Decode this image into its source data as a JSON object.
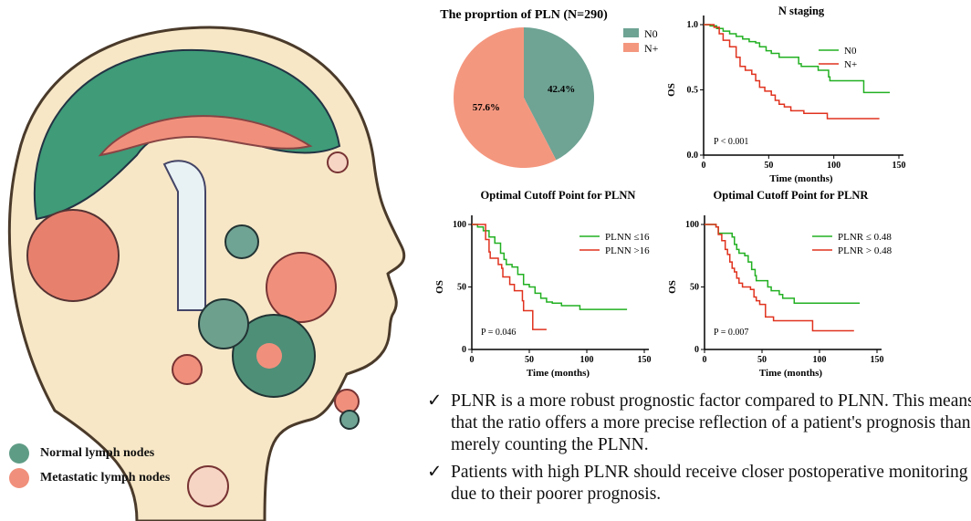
{
  "illustration": {
    "legend": [
      {
        "label": "Normal lymph nodes",
        "color": "#5f9c85"
      },
      {
        "label": "Metastatic lymph nodes",
        "color": "#f08f7b"
      }
    ]
  },
  "colors": {
    "green": "#22b022",
    "red": "#e0321e",
    "n0_pie": "#6fa394",
    "nplus_pie": "#f4977f"
  },
  "chart_data": [
    {
      "type": "pie",
      "title": "The proprtion of  PLN (N=290)",
      "slices": [
        {
          "label": "N0",
          "value": 42.4,
          "text": "42.4%"
        },
        {
          "label": "N+",
          "value": 57.6,
          "text": "57.6%"
        }
      ],
      "legend": "right"
    },
    {
      "type": "line",
      "title": "N staging",
      "xlabel": "Time (months)",
      "ylabel": "OS",
      "xlim": [
        0,
        150
      ],
      "ylim": [
        0,
        1
      ],
      "xticks": [
        "0",
        "50",
        "100",
        "150"
      ],
      "yticks": [
        "0.0",
        "0.5",
        "1.0"
      ],
      "annotation": "P < 0.001",
      "series": [
        {
          "name": "N0",
          "color": "green",
          "points": [
            [
              0,
              1
            ],
            [
              5,
              0.99
            ],
            [
              10,
              0.97
            ],
            [
              15,
              0.95
            ],
            [
              20,
              0.93
            ],
            [
              25,
              0.91
            ],
            [
              30,
              0.89
            ],
            [
              35,
              0.87
            ],
            [
              40,
              0.86
            ],
            [
              43,
              0.83
            ],
            [
              48,
              0.8
            ],
            [
              52,
              0.78
            ],
            [
              58,
              0.75
            ],
            [
              70,
              0.75
            ],
            [
              73,
              0.7
            ],
            [
              75,
              0.68
            ],
            [
              85,
              0.68
            ],
            [
              88,
              0.65
            ],
            [
              94,
              0.65
            ],
            [
              96,
              0.6
            ],
            [
              97,
              0.57
            ],
            [
              122,
              0.57
            ],
            [
              123,
              0.48
            ],
            [
              143,
              0.48
            ]
          ]
        },
        {
          "name": "N+",
          "color": "red",
          "points": [
            [
              0,
              1
            ],
            [
              8,
              0.98
            ],
            [
              12,
              0.93
            ],
            [
              15,
              0.88
            ],
            [
              20,
              0.83
            ],
            [
              25,
              0.75
            ],
            [
              28,
              0.68
            ],
            [
              32,
              0.65
            ],
            [
              37,
              0.62
            ],
            [
              40,
              0.57
            ],
            [
              43,
              0.52
            ],
            [
              47,
              0.49
            ],
            [
              52,
              0.46
            ],
            [
              55,
              0.42
            ],
            [
              58,
              0.39
            ],
            [
              62,
              0.37
            ],
            [
              67,
              0.34
            ],
            [
              77,
              0.32
            ],
            [
              94,
              0.32
            ],
            [
              95,
              0.28
            ],
            [
              135,
              0.28
            ]
          ]
        }
      ]
    },
    {
      "type": "line",
      "title": "Optimal Cutoff Point for PLNN",
      "xlabel": "Time (months)",
      "ylabel": "OS",
      "xlim": [
        0,
        150
      ],
      "ylim": [
        0,
        100
      ],
      "xticks": [
        "0",
        "50",
        "100",
        "150"
      ],
      "yticks": [
        "0",
        "50",
        "100"
      ],
      "annotation": "P = 0.046",
      "series": [
        {
          "name": "PLNN ≤16",
          "color": "green",
          "points": [
            [
              0,
              100
            ],
            [
              5,
              98
            ],
            [
              10,
              95
            ],
            [
              15,
              90
            ],
            [
              20,
              85
            ],
            [
              25,
              77
            ],
            [
              28,
              72
            ],
            [
              30,
              68
            ],
            [
              35,
              66
            ],
            [
              40,
              60
            ],
            [
              45,
              52
            ],
            [
              50,
              50
            ],
            [
              55,
              45
            ],
            [
              60,
              41
            ],
            [
              65,
              38
            ],
            [
              70,
              37
            ],
            [
              78,
              35
            ],
            [
              93,
              35
            ],
            [
              94,
              32
            ],
            [
              135,
              32
            ]
          ]
        },
        {
          "name": "PLNN >16",
          "color": "red",
          "points": [
            [
              0,
              100
            ],
            [
              10,
              100
            ],
            [
              12,
              88
            ],
            [
              15,
              78
            ],
            [
              16,
              73
            ],
            [
              22,
              73
            ],
            [
              23,
              68
            ],
            [
              26,
              65
            ],
            [
              27,
              58
            ],
            [
              32,
              58
            ],
            [
              33,
              52
            ],
            [
              36,
              52
            ],
            [
              37,
              47
            ],
            [
              43,
              47
            ],
            [
              44,
              39
            ],
            [
              45,
              31
            ],
            [
              52,
              31
            ],
            [
              53,
              16
            ],
            [
              65,
              16
            ]
          ]
        }
      ]
    },
    {
      "type": "line",
      "title": "Optimal Cutoff Point for PLNR",
      "xlabel": "Time (months)",
      "ylabel": "OS",
      "xlim": [
        0,
        150
      ],
      "ylim": [
        0,
        100
      ],
      "xticks": [
        "0",
        "50",
        "100",
        "150"
      ],
      "yticks": [
        "0",
        "50",
        "100"
      ],
      "annotation": "P = 0.007",
      "series": [
        {
          "name": "PLNR ≤ 0.48",
          "color": "green",
          "points": [
            [
              0,
              100
            ],
            [
              10,
              98
            ],
            [
              12,
              93
            ],
            [
              24,
              90
            ],
            [
              26,
              84
            ],
            [
              28,
              80
            ],
            [
              30,
              77
            ],
            [
              35,
              75
            ],
            [
              38,
              70
            ],
            [
              41,
              64
            ],
            [
              44,
              59
            ],
            [
              45,
              55
            ],
            [
              52,
              55
            ],
            [
              55,
              50
            ],
            [
              58,
              47
            ],
            [
              63,
              47
            ],
            [
              65,
              44
            ],
            [
              68,
              41
            ],
            [
              77,
              41
            ],
            [
              78,
              37
            ],
            [
              135,
              37
            ]
          ]
        },
        {
          "name": "PLNR > 0.48",
          "color": "red",
          "points": [
            [
              0,
              100
            ],
            [
              10,
              98
            ],
            [
              12,
              92
            ],
            [
              15,
              87
            ],
            [
              18,
              80
            ],
            [
              20,
              76
            ],
            [
              22,
              70
            ],
            [
              24,
              65
            ],
            [
              26,
              62
            ],
            [
              28,
              57
            ],
            [
              30,
              53
            ],
            [
              33,
              50
            ],
            [
              38,
              50
            ],
            [
              40,
              48
            ],
            [
              43,
              42
            ],
            [
              45,
              39
            ],
            [
              48,
              36
            ],
            [
              52,
              36
            ],
            [
              53,
              26
            ],
            [
              58,
              26
            ],
            [
              60,
              23
            ],
            [
              93,
              23
            ],
            [
              94,
              15
            ],
            [
              130,
              15
            ]
          ]
        }
      ]
    }
  ],
  "conclusions": {
    "check_symbol": "✓",
    "items": [
      "PLNR is a more robust prognostic factor compared to PLNN. This means that the ratio offers a more precise reflection of a patient's prognosis than merely counting the PLNN.",
      "Patients with high PLNR should receive closer postoperative monitoring due to their poorer prognosis."
    ]
  }
}
